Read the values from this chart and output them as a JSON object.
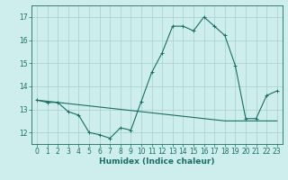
{
  "title": "",
  "xlabel": "Humidex (Indice chaleur)",
  "background_color": "#ceeeed",
  "grid_color": "#aad4d3",
  "line_color": "#1a6e64",
  "x_data": [
    0,
    1,
    2,
    3,
    4,
    5,
    6,
    7,
    8,
    9,
    10,
    11,
    12,
    13,
    14,
    15,
    16,
    17,
    18,
    19,
    20,
    21,
    22,
    23
  ],
  "y_curve1": [
    13.4,
    13.3,
    13.3,
    12.9,
    12.75,
    12.0,
    11.9,
    11.75,
    12.2,
    12.1,
    13.35,
    14.6,
    15.45,
    16.6,
    16.6,
    16.4,
    17.0,
    16.6,
    16.2,
    14.9,
    12.6,
    12.6,
    13.6,
    13.8
  ],
  "y_line": [
    13.4,
    13.35,
    13.3,
    13.25,
    13.2,
    13.15,
    13.1,
    13.05,
    13.0,
    12.95,
    12.9,
    12.85,
    12.8,
    12.75,
    12.7,
    12.65,
    12.6,
    12.55,
    12.5,
    12.5,
    12.5,
    12.5,
    12.5,
    12.5
  ],
  "ylim": [
    11.5,
    17.5
  ],
  "xlim": [
    -0.5,
    23.5
  ],
  "yticks": [
    12,
    13,
    14,
    15,
    16,
    17
  ],
  "xticks": [
    0,
    1,
    2,
    3,
    4,
    5,
    6,
    7,
    8,
    9,
    10,
    11,
    12,
    13,
    14,
    15,
    16,
    17,
    18,
    19,
    20,
    21,
    22,
    23
  ],
  "xlabel_fontsize": 6.5,
  "tick_fontsize": 5.5,
  "linewidth": 0.8,
  "markersize": 2.5
}
